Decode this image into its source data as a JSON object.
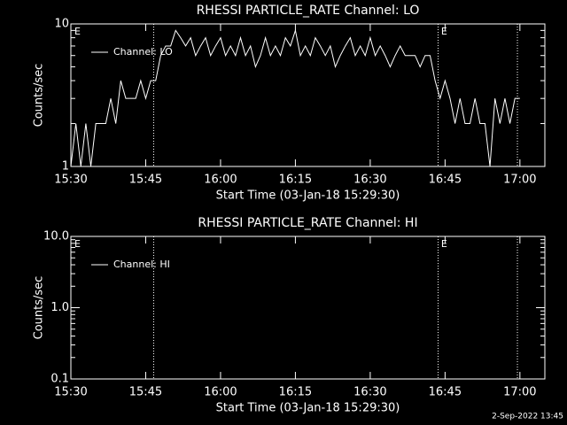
{
  "chart_data": [
    {
      "type": "line",
      "title": "RHESSI PARTICLE_RATE Channel: LO",
      "xlabel": "Start Time (03-Jan-18 15:29:30)",
      "ylabel": "Counts/sec",
      "x": [
        0,
        1,
        2,
        3,
        4,
        5,
        6,
        7,
        8,
        9,
        10,
        11,
        12,
        13,
        14,
        15,
        16,
        17,
        18,
        19,
        20,
        21,
        22,
        23,
        24,
        25,
        26,
        27,
        28,
        29,
        30,
        31,
        32,
        33,
        34,
        35,
        36,
        37,
        38,
        39,
        40,
        41,
        42,
        43,
        44,
        45,
        46,
        47,
        48,
        49,
        50,
        51,
        52,
        53,
        54,
        55,
        56,
        57,
        58,
        59,
        60,
        61,
        62,
        63,
        64,
        65,
        66,
        67,
        68,
        69,
        70,
        71,
        72,
        73,
        74,
        75,
        76,
        77,
        78,
        79,
        80,
        81,
        82,
        83,
        84,
        85,
        86,
        87,
        88,
        89,
        90
      ],
      "series": [
        {
          "name": "Channel: LO",
          "color": "#ffffff",
          "values": [
            1,
            2,
            1,
            2,
            1,
            2,
            2,
            2,
            3,
            2,
            4,
            3,
            3,
            3,
            4,
            3,
            4,
            4,
            6,
            7,
            7,
            9,
            8,
            7,
            8,
            6,
            7,
            8,
            6,
            7,
            8,
            6,
            7,
            6,
            8,
            6,
            7,
            5,
            6,
            8,
            6,
            7,
            6,
            8,
            7,
            9,
            6,
            7,
            6,
            8,
            7,
            6,
            7,
            5,
            6,
            7,
            8,
            6,
            7,
            6,
            8,
            6,
            7,
            6,
            5,
            6,
            7,
            6,
            6,
            6,
            5,
            6,
            6,
            4,
            3,
            4,
            3,
            2,
            3,
            2,
            2,
            3,
            2,
            2,
            1,
            3,
            2,
            3,
            2,
            3,
            3
          ]
        }
      ],
      "xlim": [
        0,
        95
      ],
      "xticks": [
        {
          "value": 0,
          "label": "15:30"
        },
        {
          "value": 15,
          "label": "15:45"
        },
        {
          "value": 30,
          "label": "16:00"
        },
        {
          "value": 45,
          "label": "16:15"
        },
        {
          "value": 60,
          "label": "16:30"
        },
        {
          "value": 75,
          "label": "16:45"
        },
        {
          "value": 90,
          "label": "17:00"
        }
      ],
      "ylim": [
        1,
        10
      ],
      "yticks": [
        1,
        10
      ],
      "minor_yticks": [
        2,
        3,
        4,
        5,
        6,
        7,
        8,
        9
      ],
      "log_y": true,
      "vlines": [
        16.6,
        73.6,
        89.5
      ],
      "annotations": [
        {
          "x": 0.7,
          "text": "E"
        },
        {
          "x": 74.2,
          "text": "E"
        }
      ],
      "legend": "upper left"
    },
    {
      "type": "line",
      "title": "RHESSI PARTICLE_RATE Channel: HI",
      "xlabel": "Start Time (03-Jan-18 15:29:30)",
      "ylabel": "Counts/sec",
      "x": [],
      "series": [
        {
          "name": "Channel: HI",
          "color": "#ffffff",
          "values": []
        }
      ],
      "xlim": [
        0,
        95
      ],
      "xticks": [
        {
          "value": 0,
          "label": "15:30"
        },
        {
          "value": 15,
          "label": "15:45"
        },
        {
          "value": 30,
          "label": "16:00"
        },
        {
          "value": 45,
          "label": "16:15"
        },
        {
          "value": 60,
          "label": "16:30"
        },
        {
          "value": 75,
          "label": "16:45"
        },
        {
          "value": 90,
          "label": "17:00"
        }
      ],
      "ylim": [
        0.1,
        10
      ],
      "yticks": [
        {
          "value": 0.1,
          "label": "0.1"
        },
        {
          "value": 1,
          "label": "1.0"
        },
        {
          "value": 10,
          "label": "10.0"
        }
      ],
      "minor_yticks": [
        0.2,
        0.3,
        0.4,
        0.5,
        0.6,
        0.7,
        0.8,
        0.9,
        2,
        3,
        4,
        5,
        6,
        7,
        8,
        9
      ],
      "log_y": true,
      "vlines": [
        16.6,
        73.6,
        89.5
      ],
      "annotations": [
        {
          "x": 0.7,
          "text": "E"
        },
        {
          "x": 74.2,
          "text": "E"
        }
      ],
      "legend": "upper left"
    }
  ],
  "footer": "2-Sep-2022 13:45"
}
